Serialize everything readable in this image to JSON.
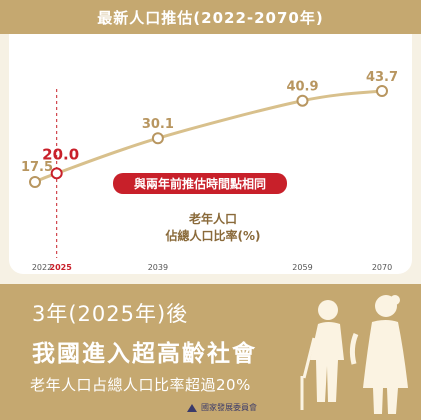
{
  "header": {
    "title": "最新人口推估(2022-2070年)"
  },
  "chart_data": {
    "type": "line",
    "x": [
      2022,
      2025,
      2039,
      2059,
      2070
    ],
    "values": [
      17.5,
      20.0,
      30.1,
      40.9,
      43.7
    ],
    "labels": [
      "17.5",
      "20.0",
      "30.1",
      "40.9",
      "43.7"
    ],
    "tick_labels": [
      "2022",
      "2025",
      "2039",
      "2059",
      "2070"
    ],
    "highlight_x": 2025,
    "series_label_line1": "老年人口",
    "series_label_line2": "佔總人口比率(%)",
    "callout": "與兩年前推估時間點相同",
    "colors": {
      "line": "#d8c08c",
      "marker": "#b89660",
      "highlight": "#c8202a",
      "tick": "#555555"
    }
  },
  "summary": {
    "line1": "3年(2025年)後",
    "line2": "我國進入超高齡社會",
    "line3": "老年人口占總人口比率超過20%"
  },
  "footer": {
    "org": "國家發展委員會"
  }
}
